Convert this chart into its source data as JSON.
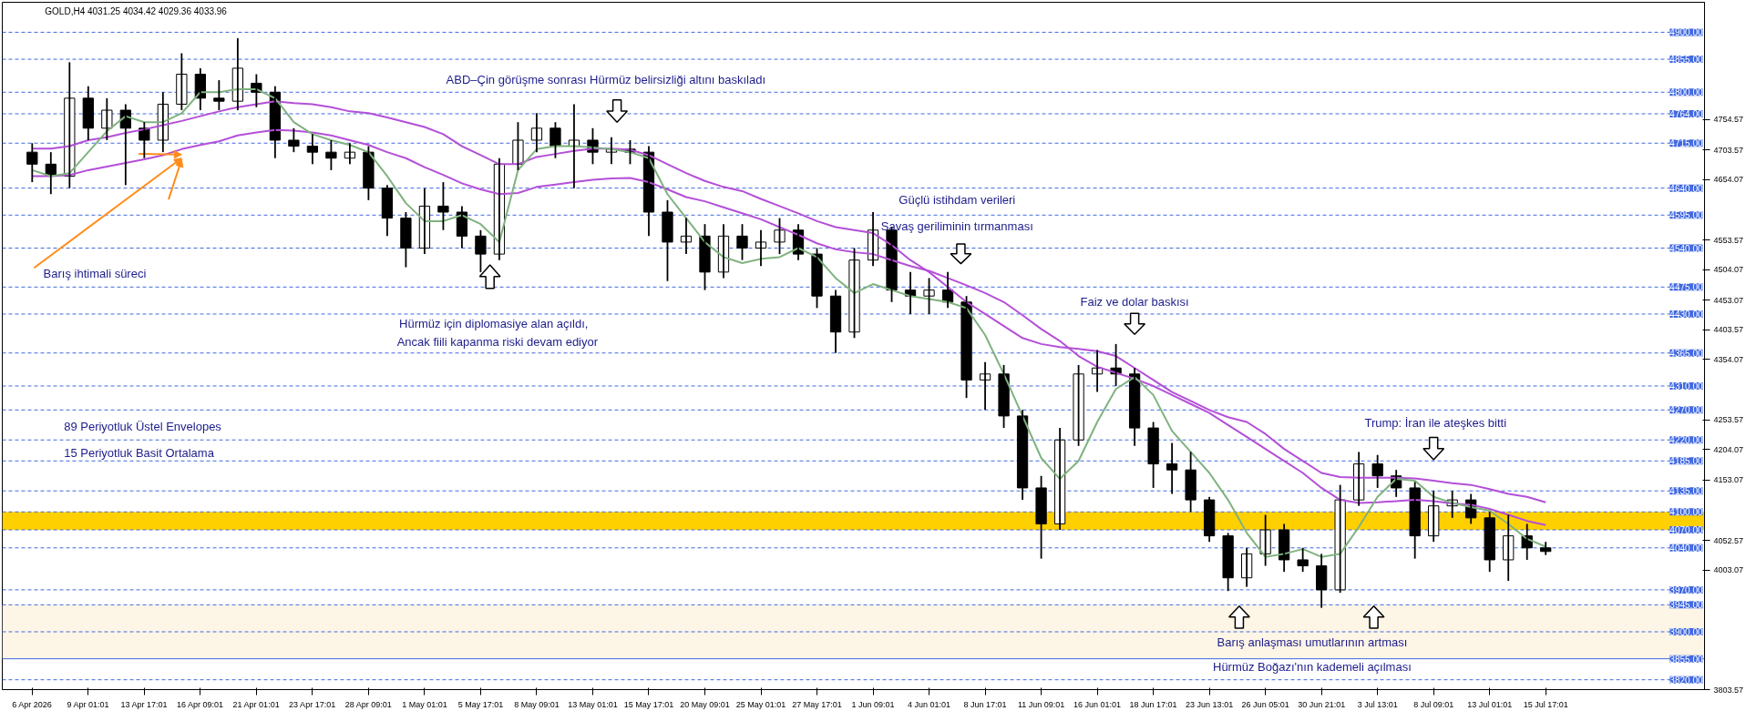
{
  "chart_data": {
    "type": "candlestick",
    "title": "GOLD,H4  4031.25 4034.42 4029.36 4033.96",
    "color": "#000000",
    "categories": [
      "6 Apr 2026",
      null,
      null,
      "9 Apr 01:01",
      null,
      null,
      "13 Apr 17:01",
      null,
      null,
      "16 Apr 09:01",
      null,
      null,
      "21 Apr 01:01",
      null,
      null,
      "23 Apr 17:01",
      null,
      null,
      "28 Apr 09:01",
      null,
      null,
      "1 May 01:01",
      null,
      null,
      "5 May 17:01",
      null,
      null,
      "8 May 09:01",
      null,
      null,
      "13 May 01:01",
      null,
      null,
      "15 May 17:01",
      null,
      null,
      "20 May 09:01",
      null,
      null,
      "25 May 01:01",
      null,
      null,
      "27 May 17:01",
      null,
      null,
      "1 Jun 09:01",
      null,
      null,
      "4 Jun 01:01",
      null,
      null,
      "8 Jun 17:01",
      null,
      null,
      "11 Jun 09:01",
      null,
      null,
      "16 Jun 01:01",
      null,
      null,
      "18 Jun 17:01",
      null,
      null,
      "23 Jun 13:01",
      null,
      null,
      "26 Jun 05:01",
      null,
      null,
      "30 Jun 21:01",
      null,
      null,
      "3 Jul 13:01",
      null,
      null,
      "8 Jul 09:01",
      null,
      null,
      "13 Jul 01:01",
      null,
      null,
      "15 Jul 17:01"
    ],
    "ohlc": [
      [
        4700,
        4715,
        4650,
        4680
      ],
      [
        4680,
        4700,
        4630,
        4660
      ],
      [
        4660,
        4850,
        4640,
        4790
      ],
      [
        4790,
        4810,
        4720,
        4740
      ],
      [
        4740,
        4790,
        4720,
        4770
      ],
      [
        4770,
        4780,
        4645,
        4740
      ],
      [
        4740,
        4750,
        4690,
        4720
      ],
      [
        4720,
        4800,
        4700,
        4780
      ],
      [
        4780,
        4865,
        4770,
        4830
      ],
      [
        4830,
        4840,
        4770,
        4790
      ],
      [
        4790,
        4820,
        4770,
        4785
      ],
      [
        4785,
        4890,
        4770,
        4840
      ],
      [
        4815,
        4830,
        4775,
        4800
      ],
      [
        4800,
        4810,
        4690,
        4720
      ],
      [
        4720,
        4740,
        4700,
        4710
      ],
      [
        4710,
        4730,
        4680,
        4700
      ],
      [
        4700,
        4720,
        4670,
        4690
      ],
      [
        4690,
        4715,
        4680,
        4700
      ],
      [
        4700,
        4710,
        4620,
        4640
      ],
      [
        4640,
        4645,
        4560,
        4590
      ],
      [
        4590,
        4600,
        4508,
        4540
      ],
      [
        4540,
        4640,
        4530,
        4610
      ],
      [
        4610,
        4650,
        4570,
        4600
      ],
      [
        4600,
        4610,
        4540,
        4560
      ],
      [
        4560,
        4570,
        4500,
        4530
      ],
      [
        4530,
        4690,
        4520,
        4680
      ],
      [
        4680,
        4750,
        4670,
        4720
      ],
      [
        4720,
        4765,
        4700,
        4740
      ],
      [
        4740,
        4750,
        4690,
        4710
      ],
      [
        4710,
        4780,
        4640,
        4720
      ],
      [
        4720,
        4740,
        4680,
        4700
      ],
      [
        4700,
        4725,
        4680,
        4705
      ],
      [
        4705,
        4720,
        4680,
        4700
      ],
      [
        4700,
        4710,
        4560,
        4600
      ],
      [
        4600,
        4620,
        4485,
        4550
      ],
      [
        4550,
        4590,
        4530,
        4560
      ],
      [
        4560,
        4580,
        4470,
        4500
      ],
      [
        4500,
        4580,
        4490,
        4560
      ],
      [
        4560,
        4580,
        4520,
        4540
      ],
      [
        4540,
        4570,
        4510,
        4550
      ],
      [
        4550,
        4590,
        4530,
        4570
      ],
      [
        4570,
        4580,
        4520,
        4530
      ],
      [
        4530,
        4540,
        4440,
        4460
      ],
      [
        4460,
        4470,
        4365,
        4400
      ],
      [
        4400,
        4540,
        4390,
        4520
      ],
      [
        4520,
        4600,
        4510,
        4570
      ],
      [
        4570,
        4575,
        4450,
        4470
      ],
      [
        4470,
        4500,
        4430,
        4460
      ],
      [
        4460,
        4490,
        4430,
        4470
      ],
      [
        4470,
        4500,
        4440,
        4450
      ],
      [
        4450,
        4460,
        4290,
        4320
      ],
      [
        4320,
        4350,
        4270,
        4330
      ],
      [
        4330,
        4345,
        4240,
        4260
      ],
      [
        4260,
        4270,
        4120,
        4140
      ],
      [
        4140,
        4160,
        4022,
        4080
      ],
      [
        4080,
        4240,
        4070,
        4220
      ],
      [
        4220,
        4345,
        4210,
        4330
      ],
      [
        4330,
        4370,
        4300,
        4340
      ],
      [
        4340,
        4380,
        4310,
        4330
      ],
      [
        4330,
        4340,
        4210,
        4240
      ],
      [
        4240,
        4250,
        4140,
        4180
      ],
      [
        4180,
        4215,
        4130,
        4170
      ],
      [
        4170,
        4200,
        4100,
        4120
      ],
      [
        4120,
        4125,
        4050,
        4060
      ],
      [
        4060,
        4065,
        3968,
        3990
      ],
      [
        3990,
        4040,
        3975,
        4030
      ],
      [
        4030,
        4095,
        4010,
        4070
      ],
      [
        4070,
        4080,
        4000,
        4020
      ],
      [
        4020,
        4040,
        4000,
        4010
      ],
      [
        4010,
        4030,
        3940,
        3970
      ],
      [
        3970,
        4145,
        3965,
        4120
      ],
      [
        4120,
        4200,
        4110,
        4180
      ],
      [
        4180,
        4195,
        4140,
        4160
      ],
      [
        4160,
        4170,
        4125,
        4140
      ],
      [
        4140,
        4150,
        4022,
        4060
      ],
      [
        4060,
        4135,
        4050,
        4110
      ],
      [
        4110,
        4135,
        4090,
        4120
      ],
      [
        4120,
        4130,
        4080,
        4090
      ],
      [
        4090,
        4100,
        4000,
        4020
      ],
      [
        4020,
        4095,
        3985,
        4060
      ],
      [
        4060,
        4080,
        4020,
        4040
      ],
      [
        4040,
        4050,
        4028,
        4033.96
      ]
    ],
    "series": [
      {
        "type": "line",
        "color": "#b44fd8",
        "values": [
          4706,
          4706,
          4710,
          4720,
          4725,
          4732,
          4738,
          4745,
          4752,
          4760,
          4768,
          4775,
          4780,
          4785,
          4782,
          4780,
          4775,
          4768,
          4765,
          4758,
          4750,
          4742,
          4730,
          4710,
          4695,
          4680,
          4680,
          4692,
          4697,
          4702,
          4706,
          4706,
          4704,
          4695,
          4680,
          4665,
          4652,
          4642,
          4635,
          4622,
          4610,
          4598,
          4585,
          4575,
          4570,
          4565,
          4545,
          4520,
          4500,
          4475,
          4450,
          4430,
          4410,
          4390,
          4380,
          4375,
          4372,
          4368,
          4360,
          4340,
          4320,
          4300,
          4285,
          4270,
          4258,
          4250,
          4230,
          4205,
          4185,
          4165,
          4158,
          4157,
          4157,
          4157,
          4156,
          4152,
          4148,
          4145,
          4138,
          4130,
          4125,
          4116
        ]
      },
      {
        "type": "line",
        "color": "#b44fd8",
        "values": [
          4660,
          4660,
          4662,
          4670,
          4676,
          4682,
          4688,
          4695,
          4705,
          4712,
          4718,
          4728,
          4733,
          4737,
          4736,
          4733,
          4728,
          4720,
          4712,
          4700,
          4690,
          4675,
          4662,
          4648,
          4638,
          4630,
          4632,
          4642,
          4646,
          4650,
          4654,
          4656,
          4657,
          4650,
          4638,
          4625,
          4618,
          4608,
          4598,
          4588,
          4575,
          4562,
          4548,
          4538,
          4533,
          4530,
          4520,
          4510,
          4502,
          4490,
          4478,
          4465,
          4450,
          4428,
          4405,
          4385,
          4360,
          4342,
          4332,
          4322,
          4310,
          4295,
          4280,
          4265,
          4245,
          4225,
          4205,
          4185,
          4165,
          4140,
          4120,
          4115,
          4116,
          4118,
          4120,
          4118,
          4114,
          4112,
          4105,
          4095,
          4085,
          4078
        ]
      },
      {
        "type": "line",
        "color": "#7fb27f",
        "values": [
          4670,
          4660,
          4665,
          4700,
          4735,
          4760,
          4750,
          4750,
          4765,
          4800,
          4800,
          4805,
          4805,
          4790,
          4750,
          4730,
          4720,
          4712,
          4700,
          4660,
          4615,
          4585,
          4585,
          4595,
          4580,
          4550,
          4670,
          4705,
          4710,
          4710,
          4708,
          4705,
          4700,
          4690,
          4630,
          4590,
          4550,
          4525,
          4515,
          4522,
          4525,
          4540,
          4525,
          4490,
          4465,
          4480,
          4470,
          4460,
          4455,
          4450,
          4440,
          4395,
          4330,
          4260,
          4190,
          4155,
          4185,
          4250,
          4305,
          4325,
          4295,
          4235,
          4200,
          4165,
          4120,
          4065,
          4025,
          4030,
          4038,
          4025,
          4030,
          4075,
          4125,
          4155,
          4152,
          4125,
          4115,
          4108,
          4102,
          4080,
          4055,
          4042
        ]
      }
    ],
    "ylim": [
      3803.57,
      4950
    ],
    "yticks": [
      {
        "value": 4754.57,
        "label": "4754.57"
      },
      {
        "value": 4703.57,
        "label": "4703.57"
      },
      {
        "value": 4654.07,
        "label": "4654.07"
      },
      {
        "value": 4553.57,
        "label": "4553.57"
      },
      {
        "value": 4504.07,
        "label": "4504.07"
      },
      {
        "value": 4453.07,
        "label": "4453.07"
      },
      {
        "value": 4403.57,
        "label": "4403.57"
      },
      {
        "value": 4354.07,
        "label": "4354.07"
      },
      {
        "value": 4253.57,
        "label": "4253.57"
      },
      {
        "value": 4204.07,
        "label": "4204.07"
      },
      {
        "value": 4153.07,
        "label": "4153.07"
      },
      {
        "value": 4052.57,
        "label": "4052.57"
      },
      {
        "value": 4003.07,
        "label": "4003.07"
      },
      {
        "value": 3803.57,
        "label": "3803.57"
      }
    ],
    "bands": [
      {
        "axis": "y",
        "from": 3855,
        "to": 3945,
        "color": "#fdf5e6"
      },
      {
        "axis": "y",
        "from": 4070,
        "to": 4100,
        "color": "#ffd000"
      }
    ],
    "ref_lines": [
      {
        "axis": "y",
        "value": 4900,
        "label": "4900.00",
        "color": "#4169e1",
        "line_style": "dashed"
      },
      {
        "axis": "y",
        "value": 4855,
        "label": "4855.00",
        "color": "#4169e1",
        "line_style": "dashed"
      },
      {
        "axis": "y",
        "value": 4800,
        "label": "4800.00",
        "color": "#4169e1",
        "line_style": "dashed"
      },
      {
        "axis": "y",
        "value": 4764,
        "label": "4764.00",
        "color": "#4169e1",
        "line_style": "dashed"
      },
      {
        "axis": "y",
        "value": 4715,
        "label": "4715.00",
        "color": "#4169e1",
        "line_style": "dashed"
      },
      {
        "axis": "y",
        "value": 4640,
        "label": "4640.00",
        "color": "#4169e1",
        "line_style": "dashed"
      },
      {
        "axis": "y",
        "value": 4595,
        "label": "4595.00",
        "color": "#4169e1",
        "line_style": "dashed"
      },
      {
        "axis": "y",
        "value": 4540,
        "label": "4540.00",
        "color": "#4169e1",
        "line_style": "dashed"
      },
      {
        "axis": "y",
        "value": 4475,
        "label": "4475.00",
        "color": "#4169e1",
        "line_style": "dashed"
      },
      {
        "axis": "y",
        "value": 4430,
        "label": "4430.00",
        "color": "#4169e1",
        "line_style": "dashed"
      },
      {
        "axis": "y",
        "value": 4365,
        "label": "4365.00",
        "color": "#4169e1",
        "line_style": "dashed"
      },
      {
        "axis": "y",
        "value": 4310,
        "label": "4310.00",
        "color": "#4169e1",
        "line_style": "dashed"
      },
      {
        "axis": "y",
        "value": 4270,
        "label": "4270.00",
        "color": "#4169e1",
        "line_style": "dashed"
      },
      {
        "axis": "y",
        "value": 4220,
        "label": "4220.00",
        "color": "#4169e1",
        "line_style": "dashed"
      },
      {
        "axis": "y",
        "value": 4185,
        "label": "4185.00",
        "color": "#4169e1",
        "line_style": "dashed"
      },
      {
        "axis": "y",
        "value": 4135,
        "label": "4135.00",
        "color": "#4169e1",
        "line_style": "dashed"
      },
      {
        "axis": "y",
        "value": 4100,
        "label": "4100.00",
        "color": "#4169e1",
        "line_style": "dashed"
      },
      {
        "axis": "y",
        "value": 4070,
        "label": "4070.00",
        "color": "#4169e1",
        "line_style": "dashed"
      },
      {
        "axis": "y",
        "value": 4040,
        "label": "4040.00",
        "color": "#4169e1",
        "line_style": "dashed"
      },
      {
        "axis": "y",
        "value": 3970,
        "label": "3970.00",
        "color": "#4169e1",
        "line_style": "dashed"
      },
      {
        "axis": "y",
        "value": 3945,
        "label": "3945.00",
        "color": "#4169e1",
        "line_style": "dashed"
      },
      {
        "axis": "y",
        "value": 3900,
        "label": "3900.00",
        "color": "#4169e1",
        "line_style": "dashed"
      },
      {
        "axis": "y",
        "value": 3855,
        "label": "3855.00",
        "color": "#4169e1",
        "line_style": "solid"
      },
      {
        "axis": "y",
        "value": 3820,
        "label": "3820.00",
        "color": "#4169e1",
        "line_style": "dashed"
      }
    ],
    "annotations": [
      "ABD–Çin görüşme sonrası Hürmüz belirsizliği altını baskıladı",
      "Barış ihtimali süreci",
      "Hürmüz için diplomasiye alan açıldı,",
      "Ancak fiili kapanma riski devam ediyor",
      "Güçlü istihdam verileri",
      "Savaş geriliminin tırmanması",
      "Faiz ve dolar baskısı",
      "Trump: İran ile ateşkes bitti",
      "Barış anlaşması umutlarının artması",
      "Hürmüz Boğazı'nın kademeli açılması",
      "89 Periyotluk Üstel Envelopes",
      "15 Periyotluk Basit Ortalama"
    ]
  }
}
